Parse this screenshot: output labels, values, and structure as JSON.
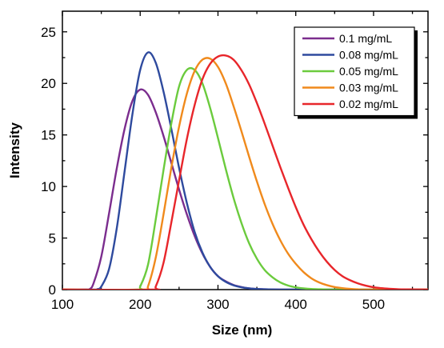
{
  "chart_data": {
    "type": "line",
    "xlabel": "Size (nm)",
    "ylabel": "Intensity",
    "xlim": [
      100,
      570
    ],
    "ylim": [
      0,
      27
    ],
    "x_ticks": [
      100,
      200,
      300,
      400,
      500
    ],
    "y_ticks": [
      0,
      5,
      10,
      15,
      20,
      25
    ],
    "legend_position": "top-right",
    "grid": false,
    "series": [
      {
        "name": "0.1  mg/mL",
        "color": "#7B2D8E",
        "x": [
          100,
          130,
          135,
          140,
          150,
          160,
          170,
          180,
          190,
          200,
          210,
          220,
          230,
          240,
          250,
          260,
          270,
          280,
          290,
          300,
          310,
          320,
          330,
          340,
          350,
          360,
          370,
          380,
          390,
          570
        ],
        "y": [
          0,
          0,
          0.05,
          0.6,
          3.2,
          7.4,
          11.8,
          15.6,
          18.3,
          19.4,
          18.9,
          17.2,
          14.9,
          12.3,
          9.7,
          7.3,
          5.2,
          3.5,
          2.2,
          1.3,
          0.8,
          0.45,
          0.25,
          0.12,
          0.06,
          0.03,
          0.01,
          0,
          0,
          0
        ]
      },
      {
        "name": "0.08 mg/mL",
        "color": "#2E4A9E",
        "x": [
          100,
          140,
          145,
          150,
          160,
          170,
          180,
          190,
          200,
          210,
          220,
          230,
          240,
          250,
          260,
          270,
          280,
          290,
          300,
          310,
          320,
          330,
          340,
          350,
          360,
          370,
          380,
          390,
          570
        ],
        "y": [
          0,
          0,
          0.05,
          0.3,
          2.0,
          6.0,
          11.5,
          17.0,
          21.3,
          23.0,
          22.0,
          19.2,
          15.6,
          11.8,
          8.4,
          5.6,
          3.6,
          2.2,
          1.3,
          0.75,
          0.42,
          0.23,
          0.12,
          0.06,
          0.03,
          0.01,
          0,
          0,
          0
        ]
      },
      {
        "name": "0.05 mg/mL",
        "color": "#6BCB3D",
        "x": [
          100,
          195,
          200,
          210,
          220,
          230,
          240,
          250,
          260,
          270,
          280,
          290,
          300,
          310,
          320,
          330,
          340,
          350,
          360,
          370,
          380,
          390,
          400,
          410,
          420,
          430,
          440,
          450,
          570
        ],
        "y": [
          0,
          0,
          0.3,
          2.4,
          6.8,
          11.6,
          16.1,
          19.7,
          21.3,
          21.3,
          20.0,
          17.6,
          14.7,
          11.7,
          8.9,
          6.5,
          4.5,
          3.0,
          1.9,
          1.2,
          0.7,
          0.4,
          0.22,
          0.12,
          0.06,
          0.03,
          0.01,
          0,
          0
        ]
      },
      {
        "name": "0.03 mg/mL",
        "color": "#F08A1C",
        "x": [
          100,
          205,
          210,
          220,
          230,
          240,
          250,
          260,
          270,
          280,
          290,
          300,
          310,
          320,
          330,
          340,
          350,
          360,
          370,
          380,
          390,
          400,
          410,
          420,
          430,
          440,
          450,
          460,
          470,
          480,
          490,
          570
        ],
        "y": [
          0,
          0,
          0.3,
          3.1,
          7.3,
          11.8,
          15.8,
          19.0,
          21.2,
          22.3,
          22.4,
          21.6,
          20.0,
          17.8,
          15.4,
          12.9,
          10.5,
          8.3,
          6.4,
          4.8,
          3.5,
          2.5,
          1.7,
          1.1,
          0.7,
          0.43,
          0.25,
          0.14,
          0.07,
          0.03,
          0,
          0
        ]
      },
      {
        "name": "0.02 mg/mL",
        "color": "#E8262B",
        "x": [
          100,
          215,
          220,
          230,
          240,
          250,
          260,
          270,
          280,
          290,
          300,
          310,
          320,
          330,
          340,
          350,
          360,
          370,
          380,
          390,
          400,
          410,
          420,
          430,
          440,
          450,
          460,
          470,
          480,
          490,
          500,
          510,
          520,
          530,
          540,
          570
        ],
        "y": [
          0,
          0,
          0.3,
          2.6,
          6.5,
          10.6,
          14.6,
          17.9,
          20.4,
          21.9,
          22.6,
          22.7,
          22.3,
          21.3,
          19.9,
          18.1,
          16.1,
          14.0,
          11.9,
          9.9,
          8.0,
          6.3,
          4.9,
          3.7,
          2.7,
          1.9,
          1.3,
          0.9,
          0.6,
          0.38,
          0.23,
          0.14,
          0.08,
          0.04,
          0.02,
          0
        ]
      }
    ]
  }
}
